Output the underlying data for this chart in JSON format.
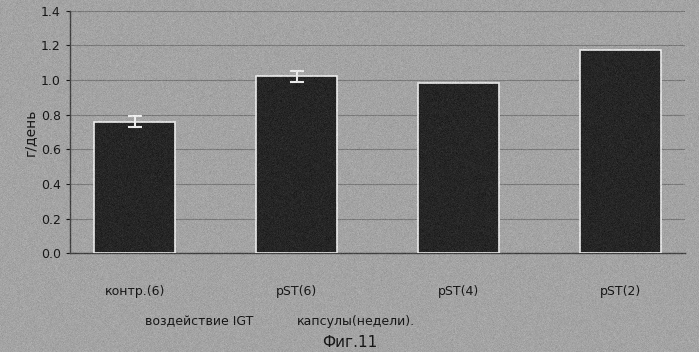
{
  "categories": [
    "контр.(6)",
    "pST(6)",
    "pST(4)",
    "pST(2)"
  ],
  "values": [
    0.76,
    1.02,
    0.98,
    1.17
  ],
  "error_bars": [
    0.03,
    0.03,
    0.0,
    0.0
  ],
  "bar_color": "#111111",
  "background_color": "#aaaaaa",
  "ylabel": "г/день",
  "ylim": [
    0.0,
    1.4
  ],
  "yticks": [
    0.0,
    0.2,
    0.4,
    0.6,
    0.8,
    1.0,
    1.2,
    1.4
  ],
  "caption": "Фиг.11",
  "tick_fontsize": 9,
  "label_fontsize": 10,
  "bar_width": 0.75,
  "gridcolor": "#777777",
  "noise_alpha": 0.25,
  "row1_labels": [
    "контр.(6)",
    "pST(6)",
    "pST(4)",
    "pST(2)"
  ],
  "row2_left": "воздействие IGT",
  "row2_right": "капсулы(недели).",
  "bar_positions": [
    0.5,
    2.0,
    3.5,
    5.0
  ]
}
